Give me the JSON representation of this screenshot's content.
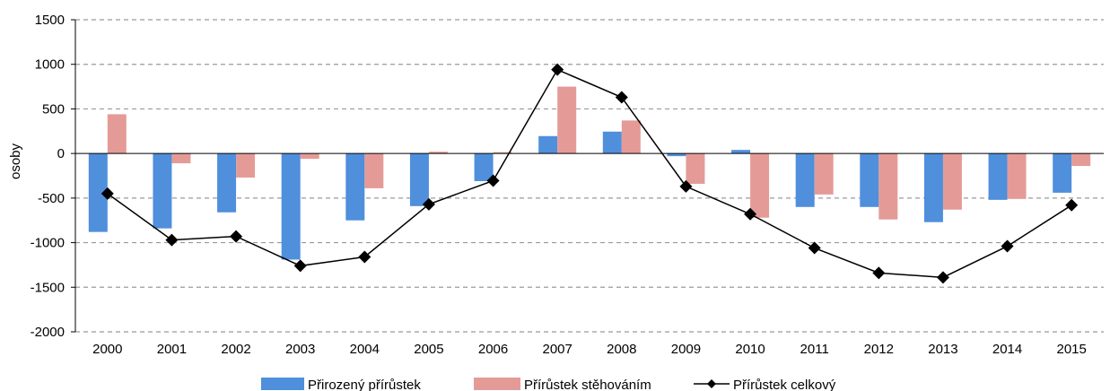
{
  "chart_data": {
    "type": "bar",
    "ylabel": "osoby",
    "xlabel": "",
    "ylim": [
      -2000,
      1500
    ],
    "yticks": [
      1500,
      1000,
      500,
      0,
      -500,
      -1000,
      -1500,
      -2000
    ],
    "grid": "horizontal-dashed",
    "legend_position": "bottom",
    "categories": [
      "2000",
      "2001",
      "2002",
      "2003",
      "2004",
      "2005",
      "2006",
      "2007",
      "2008",
      "2009",
      "2010",
      "2011",
      "2012",
      "2013",
      "2014",
      "2015"
    ],
    "series": [
      {
        "name": "Přirozený přírůstek",
        "kind": "bar",
        "color": "#4f8fdc",
        "values": [
          -880,
          -840,
          -660,
          -1190,
          -750,
          -590,
          -310,
          195,
          245,
          -30,
          40,
          -600,
          -600,
          -770,
          -520,
          -440
        ]
      },
      {
        "name": "Přírůstek stěhováním",
        "kind": "bar",
        "color": "#e49b97",
        "values": [
          440,
          -110,
          -270,
          -60,
          -390,
          20,
          15,
          750,
          370,
          -340,
          -720,
          -460,
          -740,
          -630,
          -510,
          -140
        ]
      },
      {
        "name": "Přírůstek celkový",
        "kind": "line",
        "color": "#000000",
        "marker": "diamond",
        "values": [
          -450,
          -970,
          -930,
          -1260,
          -1160,
          -570,
          -305,
          940,
          630,
          -370,
          -680,
          -1060,
          -1340,
          -1390,
          -1040,
          -580
        ]
      }
    ]
  }
}
